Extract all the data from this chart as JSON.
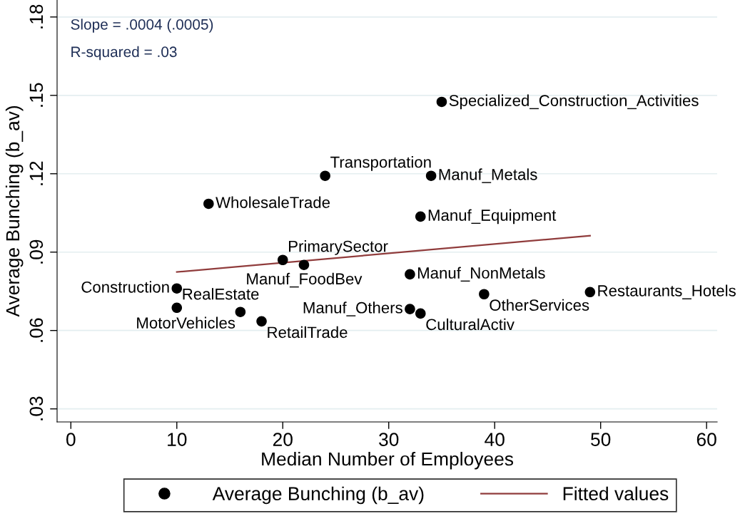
{
  "chart_data": {
    "type": "scatter",
    "xlabel": "Median Number of Employees",
    "ylabel": "Average Bunching (b_av)",
    "xlim": [
      -1.3,
      61
    ],
    "xticks": [
      0,
      10,
      20,
      30,
      40,
      50,
      60
    ],
    "ylim": [
      0.025,
      0.1865
    ],
    "yticks": [
      {
        "value": 0.03,
        "label": ".03"
      },
      {
        "value": 0.06,
        "label": ".06"
      },
      {
        "value": 0.09,
        "label": ".09"
      },
      {
        "value": 0.12,
        "label": ".12"
      },
      {
        "value": 0.15,
        "label": ".15"
      },
      {
        "value": 0.18,
        "label": ".18"
      }
    ],
    "grid": "y",
    "legend": "bottom",
    "series": [
      {
        "name": "Average Bunching (b_av)",
        "marker": "circle",
        "color": "#000000",
        "x": [
          35,
          24,
          34,
          13,
          33,
          20,
          22,
          32,
          10,
          39,
          49,
          10,
          16,
          32,
          33,
          18
        ],
        "values": [
          0.1475,
          0.1192,
          0.1192,
          0.1085,
          0.1036,
          0.087,
          0.0851,
          0.0815,
          0.0761,
          0.0739,
          0.0747,
          0.0687,
          0.0671,
          0.0682,
          0.0665,
          0.0635
        ]
      },
      {
        "name": "Fitted values",
        "type": "line",
        "color": "#903c3c",
        "x": [
          10,
          49
        ],
        "values": [
          0.0824,
          0.0963
        ]
      }
    ],
    "annotations": [
      "Slope = .0004 (.0005)",
      "R-squared = .03",
      {
        "text": "Specialized_Construction_Activities",
        "x": 35,
        "y": 0.1475
      },
      {
        "text": "Transportation",
        "x": 24,
        "y": 0.1192
      },
      {
        "text": "Manuf_Metals",
        "x": 34,
        "y": 0.1192
      },
      {
        "text": "WholesaleTrade",
        "x": 13,
        "y": 0.1085
      },
      {
        "text": "Manuf_Equipment",
        "x": 33,
        "y": 0.1036
      },
      {
        "text": "PrimarySector",
        "x": 20,
        "y": 0.087
      },
      {
        "text": "Manuf_FoodBev",
        "x": 22,
        "y": 0.0851
      },
      {
        "text": "Manuf_NonMetals",
        "x": 32,
        "y": 0.0815
      },
      {
        "text": "Construction",
        "x": 10,
        "y": 0.0761
      },
      {
        "text": "OtherServices",
        "x": 39,
        "y": 0.0739
      },
      {
        "text": "Restaurants_Hotels",
        "x": 49,
        "y": 0.0747
      },
      {
        "text": "RealEstate",
        "x": 10,
        "y": 0.0687
      },
      {
        "text": "MotorVehicles",
        "x": 16,
        "y": 0.0671
      },
      {
        "text": "Manuf_Others",
        "x": 32,
        "y": 0.0682
      },
      {
        "text": "CulturalActiv",
        "x": 33,
        "y": 0.0665
      },
      {
        "text": "RetailTrade",
        "x": 18,
        "y": 0.0635
      }
    ]
  }
}
